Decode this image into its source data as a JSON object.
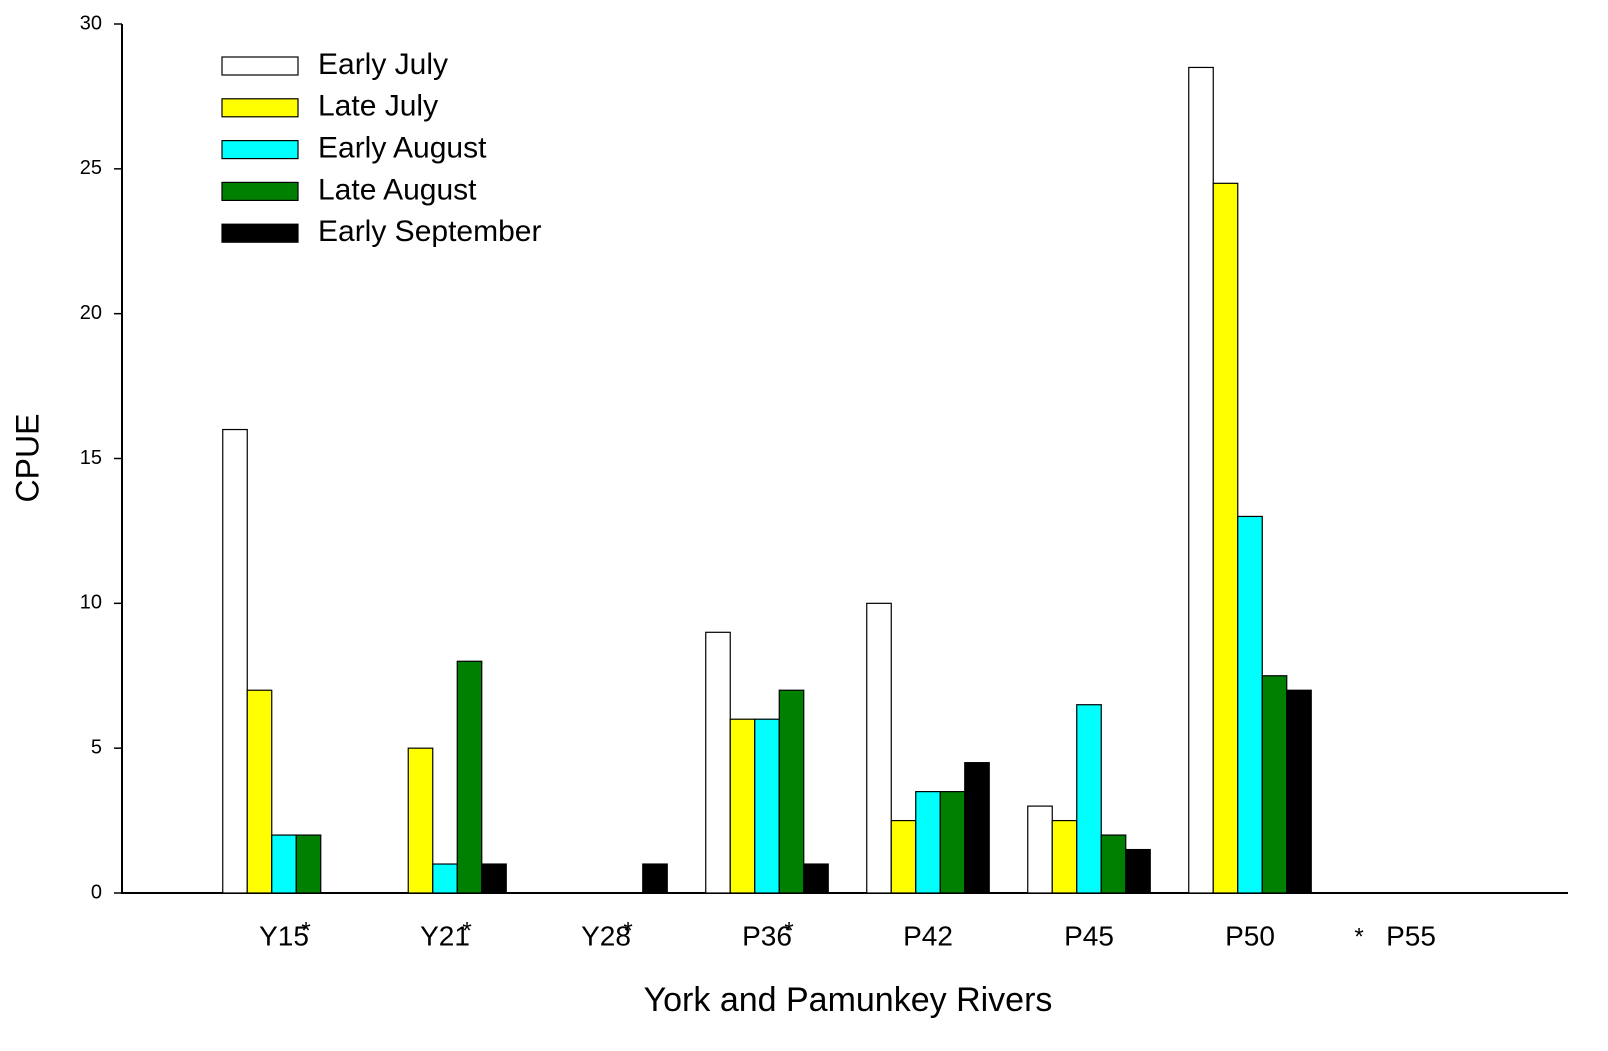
{
  "chart_data": {
    "type": "bar",
    "xlabel": "York and Pamunkey Rivers",
    "ylabel": "CPUE",
    "categories": [
      "Y15",
      "Y21",
      "Y28",
      "P36",
      "P42",
      "P45",
      "P50",
      "P55"
    ],
    "category_notes": [
      "*",
      "*",
      "*",
      "*",
      null,
      null,
      null,
      "*"
    ],
    "series": [
      {
        "name": "Early July",
        "color": "#ffffff",
        "values": [
          16,
          null,
          null,
          9,
          10,
          3,
          28.5,
          null
        ]
      },
      {
        "name": "Late July",
        "color": "#ffff00",
        "values": [
          7,
          5,
          null,
          6,
          2.5,
          2.5,
          24.5,
          null
        ]
      },
      {
        "name": "Early August",
        "color": "#00ffff",
        "values": [
          2,
          1,
          null,
          6,
          3.5,
          6.5,
          13,
          null
        ]
      },
      {
        "name": "Late August",
        "color": "#008000",
        "values": [
          2,
          8,
          null,
          7,
          3.5,
          2,
          7.5,
          null
        ]
      },
      {
        "name": "Early September",
        "color": "#000000",
        "values": [
          null,
          1,
          1,
          1,
          4.5,
          1.5,
          7,
          null
        ]
      }
    ],
    "ylim": [
      0,
      30
    ],
    "yticks": [
      0,
      5,
      10,
      15,
      20,
      25,
      30
    ],
    "legend": "upper left",
    "grid": false
  }
}
